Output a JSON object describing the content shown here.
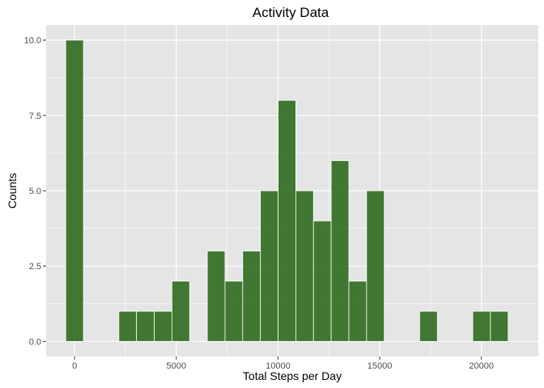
{
  "chart_data": {
    "type": "bar",
    "title": "Activity Data",
    "xlabel": "Total Steps per Day",
    "ylabel": "Counts",
    "xlim": [
      -1400,
      22800
    ],
    "ylim": [
      -0.5,
      10.5
    ],
    "x_ticks": [
      0,
      5000,
      10000,
      15000,
      20000
    ],
    "x_tick_labels": [
      "0",
      "5000",
      "10000",
      "15000",
      "20000"
    ],
    "y_ticks": [
      0,
      2.5,
      5,
      7.5,
      10
    ],
    "y_tick_labels": [
      "0.0",
      "2.5",
      "5.0",
      "7.5",
      "10.0"
    ],
    "bin_width": 870,
    "bins": [
      {
        "center": 0,
        "count": 10
      },
      {
        "center": 870,
        "count": 0
      },
      {
        "center": 1740,
        "count": 0
      },
      {
        "center": 2610,
        "count": 1
      },
      {
        "center": 3480,
        "count": 1
      },
      {
        "center": 4350,
        "count": 1
      },
      {
        "center": 5220,
        "count": 2
      },
      {
        "center": 6090,
        "count": 0
      },
      {
        "center": 6960,
        "count": 3
      },
      {
        "center": 7830,
        "count": 2
      },
      {
        "center": 8700,
        "count": 3
      },
      {
        "center": 9570,
        "count": 5
      },
      {
        "center": 10440,
        "count": 8
      },
      {
        "center": 11310,
        "count": 5
      },
      {
        "center": 12180,
        "count": 4
      },
      {
        "center": 13050,
        "count": 6
      },
      {
        "center": 13920,
        "count": 2
      },
      {
        "center": 14790,
        "count": 5
      },
      {
        "center": 15660,
        "count": 0
      },
      {
        "center": 16530,
        "count": 0
      },
      {
        "center": 17400,
        "count": 1
      },
      {
        "center": 18270,
        "count": 0
      },
      {
        "center": 19140,
        "count": 0
      },
      {
        "center": 20010,
        "count": 1
      },
      {
        "center": 20880,
        "count": 1
      }
    ],
    "grid": true,
    "colors": {
      "panel": "#e5e5e5",
      "grid": "#ffffff",
      "bar_fill": "#2d6a1e",
      "bar_stroke": "#ffffff"
    }
  }
}
